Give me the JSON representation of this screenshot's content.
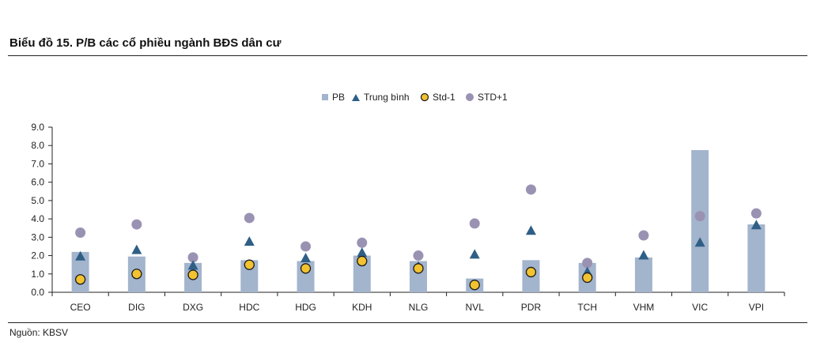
{
  "title": "Biểu đồ 15. P/B các cổ phiều ngành BĐS dân cư",
  "source": "Nguồn: KBSV",
  "colors": {
    "bar": "#a3b4cd",
    "triangle": "#2f5f86",
    "std_minus": "#f2c230",
    "std_minus_border": "#1a1a1a",
    "std_plus": "#9a92b3",
    "axis": "#222222"
  },
  "chart_data": {
    "type": "bar",
    "title": "Biểu đồ 15. P/B các cổ phiều ngành BĐS dân cư",
    "xlabel": "",
    "ylabel": "",
    "ylim": [
      0,
      9
    ],
    "yticks": [
      "0.0",
      "1.0",
      "2.0",
      "3.0",
      "4.0",
      "5.0",
      "6.0",
      "7.0",
      "8.0",
      "9.0"
    ],
    "grid": false,
    "legend_position": "top-center",
    "categories": [
      "CEO",
      "DIG",
      "DXG",
      "HDC",
      "HDG",
      "KDH",
      "NLG",
      "NVL",
      "PDR",
      "TCH",
      "VHM",
      "VIC",
      "VPI"
    ],
    "series": [
      {
        "name": "PB",
        "kind": "bar",
        "values": [
          2.2,
          1.95,
          1.6,
          1.75,
          1.7,
          2.0,
          1.7,
          0.75,
          1.75,
          1.6,
          1.9,
          7.75,
          3.7
        ]
      },
      {
        "name": "Trung bình",
        "kind": "triangle",
        "values": [
          1.95,
          2.3,
          1.45,
          2.75,
          1.85,
          2.15,
          1.4,
          2.05,
          3.35,
          1.1,
          2.0,
          2.7,
          3.65
        ]
      },
      {
        "name": "Std-1",
        "kind": "circle-yellow",
        "values": [
          0.7,
          1.0,
          0.95,
          1.5,
          1.3,
          1.7,
          1.3,
          0.4,
          1.1,
          0.8,
          null,
          null,
          null
        ]
      },
      {
        "name": "STD+1",
        "kind": "circle-purple",
        "values": [
          3.25,
          3.7,
          1.9,
          4.05,
          2.5,
          2.7,
          2.0,
          3.75,
          5.6,
          1.6,
          3.1,
          4.15,
          4.3
        ]
      }
    ]
  }
}
